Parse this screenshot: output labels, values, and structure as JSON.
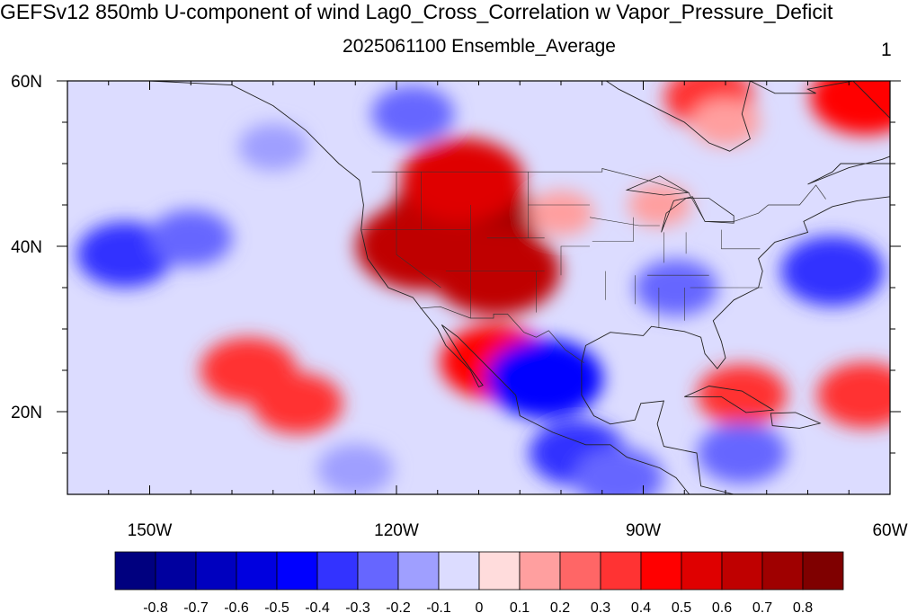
{
  "title": "GEFSv12 850mb U-component of wind Lag0_Cross_Correlation w Vapor_Pressure_Deficit",
  "subtitle": "2025061100 Ensemble_Average",
  "corner_label": "1",
  "colors": {
    "bins": [
      "#00007f",
      "#00009f",
      "#0000bf",
      "#0000df",
      "#0000ff",
      "#3333ff",
      "#6666ff",
      "#9f9fff",
      "#dcdcff",
      "#ffdcdc",
      "#ff9f9f",
      "#ff6666",
      "#ff3333",
      "#ff0000",
      "#df0000",
      "#bf0000",
      "#9f0000",
      "#7f0000"
    ]
  },
  "chart_data": {
    "type": "heatmap",
    "title": "GEFSv12 850mb U-component of wind Lag0_Cross_Correlation w Vapor_Pressure_Deficit",
    "subtitle": "2025061100 Ensemble_Average",
    "x_axis": {
      "range": [
        -160,
        -60
      ],
      "ticks": [
        -150,
        -120,
        -90,
        -60
      ],
      "tick_labels": [
        "150W",
        "120W",
        "90W",
        "60W"
      ]
    },
    "y_axis": {
      "range": [
        10,
        60
      ],
      "ticks": [
        20,
        40,
        60
      ],
      "tick_labels": [
        "20N",
        "40N",
        "60N"
      ]
    },
    "colorbar": {
      "boundaries": [
        -0.8,
        -0.7,
        -0.6,
        -0.5,
        -0.4,
        -0.3,
        -0.2,
        -0.1,
        0,
        0.1,
        0.2,
        0.3,
        0.4,
        0.5,
        0.6,
        0.7,
        0.8
      ],
      "labels": [
        "-0.8",
        "-0.7",
        "-0.6",
        "-0.5",
        "-0.4",
        "-0.3",
        "-0.2",
        "-0.1",
        "0",
        "0.1",
        "0.2",
        "0.3",
        "0.4",
        "0.5",
        "0.6",
        "0.7",
        "0.8"
      ]
    },
    "features": [
      {
        "lon": -112,
        "lat": 43,
        "value": 0.75
      },
      {
        "lon": -117,
        "lat": 40,
        "value": 0.6
      },
      {
        "lon": -108,
        "lat": 37,
        "value": 0.6
      },
      {
        "lon": -112,
        "lat": 48,
        "value": 0.55
      },
      {
        "lon": -108,
        "lat": 26,
        "value": 0.45
      },
      {
        "lon": -138,
        "lat": 25,
        "value": 0.35
      },
      {
        "lon": -132,
        "lat": 21,
        "value": 0.3
      },
      {
        "lon": -78,
        "lat": 22,
        "value": 0.3
      },
      {
        "lon": -63,
        "lat": 22,
        "value": 0.35
      },
      {
        "lon": -82,
        "lat": 58,
        "value": 0.3
      },
      {
        "lon": -63,
        "lat": 58,
        "value": 0.45
      },
      {
        "lon": -153,
        "lat": 39,
        "value": -0.35
      },
      {
        "lon": -145,
        "lat": 41,
        "value": -0.25
      },
      {
        "lon": -67,
        "lat": 37,
        "value": -0.4
      },
      {
        "lon": -102,
        "lat": 24,
        "value": -0.5
      },
      {
        "lon": -98,
        "lat": 15,
        "value": -0.35
      },
      {
        "lon": -86,
        "lat": 35,
        "value": -0.25
      },
      {
        "lon": -118,
        "lat": 56,
        "value": -0.25
      },
      {
        "lon": -93,
        "lat": 12,
        "value": -0.3
      },
      {
        "lon": -125,
        "lat": 13,
        "value": -0.2
      },
      {
        "lon": -78,
        "lat": 15,
        "value": -0.3
      },
      {
        "lon": -135,
        "lat": 52,
        "value": -0.15
      },
      {
        "lon": -100,
        "lat": 44,
        "value": 0.12
      },
      {
        "lon": -88,
        "lat": 45,
        "value": 0.1
      },
      {
        "lon": -80,
        "lat": 55,
        "value": 0.15
      }
    ]
  }
}
